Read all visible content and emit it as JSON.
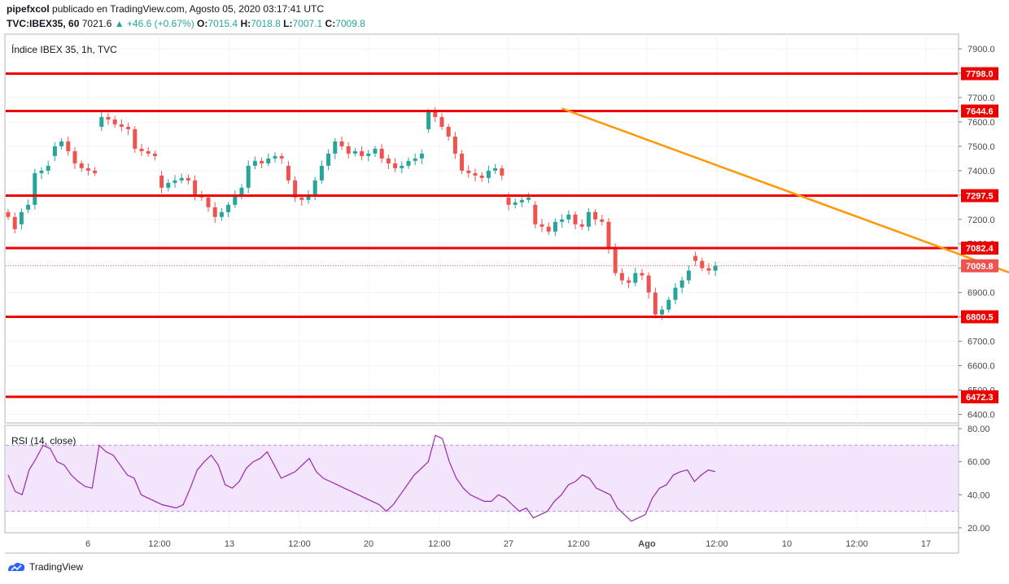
{
  "header": {
    "user": "pipefxcol",
    "published_text": " publicado en TradingView.com, Agosto 05, 2020 03:17:41 UTC",
    "symbol": "TVC:IBEX35, 60",
    "last": "7021.6",
    "change": "▲ +46.6 (+0.67%)",
    "o_label": "O:",
    "o": "7015.4",
    "h_label": "H:",
    "h": "7018.8",
    "l_label": "L:",
    "l": "7007.1",
    "c_label": "C:",
    "c": "7009.8"
  },
  "panel_title": "Índice IBEX 35, 1h, TVC",
  "rsi_title": "RSI (14, close)",
  "footer": {
    "brand": "TradingView"
  },
  "colors": {
    "red": "#ee0000",
    "orange": "#ff9800",
    "bull": "#26a69a",
    "bear": "#ef5350",
    "rsi_line": "#9c27b0",
    "rsi_band": "#f3e5fb"
  },
  "chart_data": [
    {
      "type": "candlestick",
      "title": "Índice IBEX 35, 1h, TVC",
      "y_ticks": [
        "7900.0",
        "7800.0",
        "7700.0",
        "7600.0",
        "7500.0",
        "7400.0",
        "7300.0",
        "7200.0",
        "7100.0",
        "7000.0",
        "6900.0",
        "6800.0",
        "6700.0",
        "6600.0",
        "6500.0",
        "6400.0"
      ],
      "ylim": [
        6365,
        7960
      ],
      "x_ticks": [
        "6",
        "12:00",
        "13",
        "12:00",
        "20",
        "12:00",
        "27",
        "12:00",
        "Ago",
        "12:00",
        "10",
        "12:00",
        "17"
      ],
      "horizontal_levels": [
        "7798.0",
        "7644.6",
        "7297.5",
        "7082.4",
        "6800.5",
        "6472.3"
      ],
      "last_price": "7009.8",
      "trendline": {
        "from": {
          "i": 83,
          "y": 7655
        },
        "to": {
          "i": 168,
          "y": 6802
        }
      },
      "close": [
        7210,
        7160,
        7230,
        7260,
        7390,
        7400,
        7420,
        7500,
        7520,
        7480,
        7430,
        7410,
        7400,
        7390,
        7620,
        7610,
        7590,
        7580,
        7570,
        7490,
        7480,
        7470,
        7460,
        7330,
        7350,
        7360,
        7370,
        7360,
        7300,
        7290,
        7250,
        7210,
        7230,
        7260,
        7300,
        7330,
        7420,
        7440,
        7430,
        7450,
        7460,
        7450,
        7360,
        7290,
        7280,
        7300,
        7360,
        7420,
        7470,
        7520,
        7500,
        7470,
        7480,
        7460,
        7470,
        7490,
        7450,
        7430,
        7410,
        7420,
        7440,
        7450,
        7470,
        7640,
        7620,
        7580,
        7540,
        7470,
        7400,
        7390,
        7380,
        7370,
        7400,
        7410,
        7380,
        7260,
        7270,
        7280,
        7290,
        7180,
        7170,
        7150,
        7190,
        7200,
        7220,
        7180,
        7170,
        7230,
        7200,
        7190,
        7080,
        6980,
        6950,
        6940,
        6980,
        6970,
        6900,
        6810,
        6830,
        6870,
        6920,
        6950,
        6990,
        7030,
        7000,
        6990,
        7010
      ],
      "open": [
        7230,
        7210,
        7180,
        7240,
        7260,
        7390,
        7400,
        7460,
        7500,
        7520,
        7480,
        7430,
        7410,
        7400,
        7580,
        7620,
        7610,
        7590,
        7580,
        7570,
        7490,
        7480,
        7470,
        7380,
        7330,
        7350,
        7360,
        7370,
        7360,
        7300,
        7290,
        7250,
        7210,
        7230,
        7260,
        7300,
        7330,
        7420,
        7440,
        7430,
        7450,
        7460,
        7420,
        7360,
        7290,
        7280,
        7300,
        7360,
        7420,
        7470,
        7520,
        7500,
        7470,
        7480,
        7460,
        7470,
        7490,
        7450,
        7430,
        7410,
        7420,
        7440,
        7450,
        7570,
        7640,
        7620,
        7580,
        7540,
        7470,
        7400,
        7390,
        7380,
        7370,
        7400,
        7410,
        7290,
        7260,
        7270,
        7280,
        7260,
        7180,
        7170,
        7150,
        7190,
        7200,
        7220,
        7180,
        7170,
        7230,
        7200,
        7190,
        7080,
        6980,
        6950,
        6940,
        6980,
        6970,
        6900,
        6810,
        6830,
        6870,
        6920,
        6950,
        7050,
        7030,
        7000,
        6990
      ]
    },
    {
      "type": "line",
      "title": "RSI (14, close)",
      "y_ticks": [
        "80.00",
        "60.00",
        "40.00",
        "20.00"
      ],
      "ylim": [
        17,
        82
      ],
      "bands": [
        30,
        70
      ],
      "values": [
        52,
        42,
        40,
        55,
        62,
        70,
        68,
        60,
        58,
        52,
        48,
        45,
        44,
        70,
        66,
        64,
        58,
        52,
        50,
        40,
        38,
        36,
        34,
        33,
        32,
        34,
        44,
        55,
        60,
        64,
        58,
        46,
        44,
        48,
        56,
        60,
        62,
        66,
        58,
        50,
        52,
        54,
        58,
        62,
        54,
        50,
        48,
        46,
        44,
        42,
        40,
        38,
        36,
        34,
        30,
        34,
        40,
        46,
        52,
        56,
        60,
        76,
        74,
        60,
        50,
        44,
        40,
        38,
        36,
        36,
        40,
        38,
        34,
        30,
        32,
        26,
        28,
        30,
        36,
        40,
        46,
        48,
        52,
        50,
        44,
        42,
        40,
        32,
        28,
        24,
        26,
        28,
        38,
        44,
        46,
        52,
        54,
        55,
        48,
        52,
        55,
        54
      ]
    }
  ]
}
